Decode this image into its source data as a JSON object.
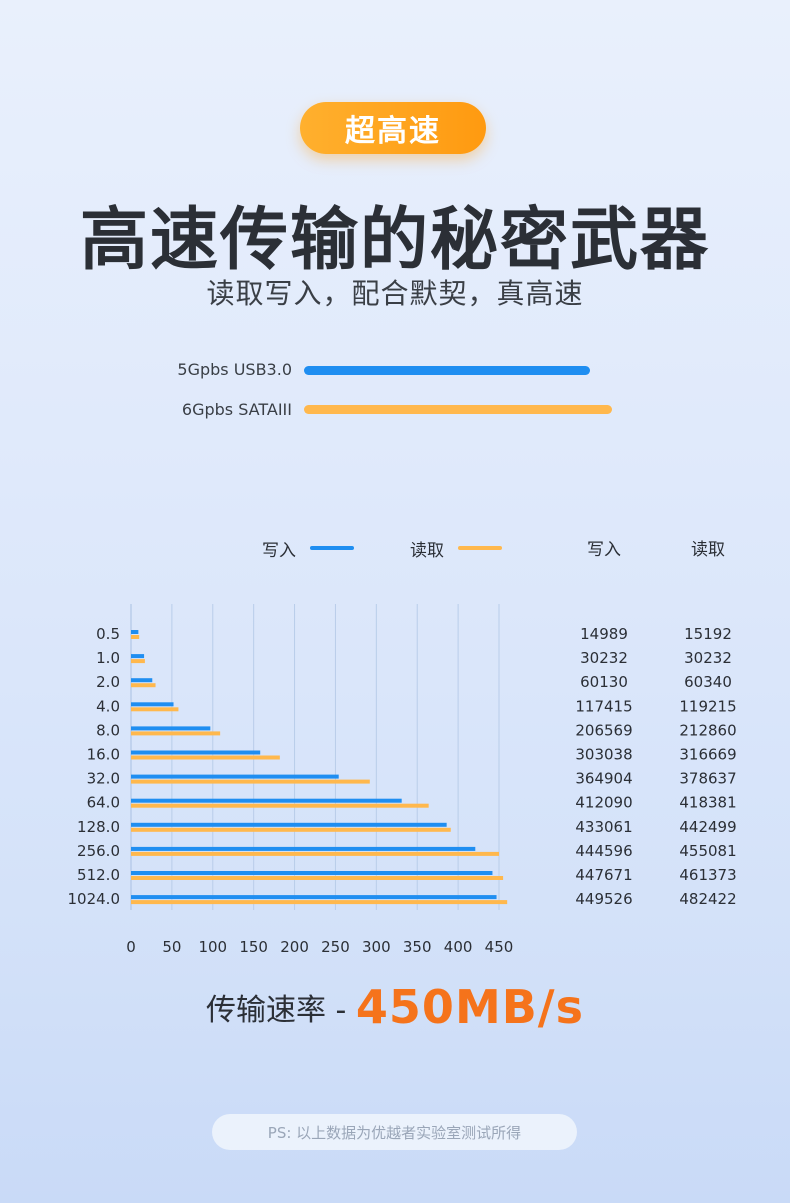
{
  "badge": "超高速",
  "headline": "高速传输的秘密武器",
  "subhead": "读取写入，配合默契，真高速",
  "specs": [
    {
      "label": "5Gpbs USB3.0",
      "color": "#1f8ef1"
    },
    {
      "label": "6Gpbs SATAIII",
      "color": "#ffb84d"
    }
  ],
  "legend": {
    "write": "写入",
    "read": "读取"
  },
  "table_headers": {
    "write": "写入",
    "read": "读取"
  },
  "colors": {
    "write": "#1f8ef1",
    "read": "#ffb84d",
    "accent": "#f5731b",
    "grid": "#b9cde9"
  },
  "chart_data": {
    "type": "bar",
    "orientation": "horizontal",
    "title": "",
    "xlabel": "",
    "ylabel": "",
    "categories": [
      "0.5",
      "1.0",
      "2.0",
      "4.0",
      "8.0",
      "16.0",
      "32.0",
      "64.0",
      "128.0",
      "256.0",
      "512.0",
      "1024.0"
    ],
    "x_ticks": [
      "0",
      "50",
      "100",
      "150",
      "200",
      "250",
      "300",
      "350",
      "400",
      "450"
    ],
    "xlim": [
      0,
      450
    ],
    "grid": true,
    "legend_position": "top",
    "series": [
      {
        "name": "写入",
        "values": [
          9,
          16,
          26,
          52,
          97,
          158,
          254,
          331,
          386,
          421,
          442,
          447
        ],
        "table_values": [
          "14989",
          "30232",
          "60130",
          "117415",
          "206569",
          "303038",
          "364904",
          "412090",
          "433061",
          "444596",
          "447671",
          "449526"
        ]
      },
      {
        "name": "读取",
        "values": [
          10,
          17,
          30,
          58,
          109,
          182,
          292,
          364,
          391,
          450,
          455,
          460
        ],
        "table_values": [
          "15192",
          "30232",
          "60340",
          "119215",
          "212860",
          "316669",
          "378637",
          "418381",
          "442499",
          "455081",
          "461373",
          "482422"
        ]
      }
    ]
  },
  "speed": {
    "label": "传输速率 - ",
    "value": "450MB/s"
  },
  "note": "PS: 以上数据为优越者实验室测试所得"
}
